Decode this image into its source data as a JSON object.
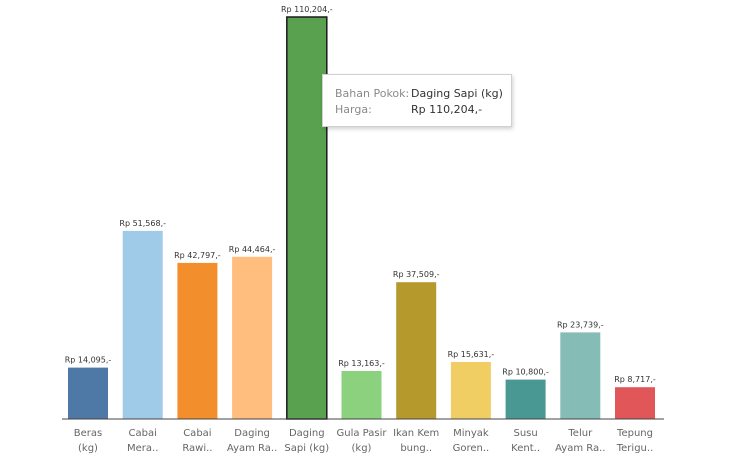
{
  "chart_data": {
    "type": "bar",
    "categories": [
      [
        "Beras",
        "(kg)"
      ],
      [
        "Cabai",
        "Mera.."
      ],
      [
        "Cabai",
        "Rawi.."
      ],
      [
        "Daging",
        "Ayam Ra.."
      ],
      [
        "Daging",
        "Sapi (kg)"
      ],
      [
        "Gula Pasir",
        "(kg)"
      ],
      [
        "Ikan Kem",
        "bung.."
      ],
      [
        "Minyak",
        "Goren.."
      ],
      [
        "Susu",
        "Kent.."
      ],
      [
        "Telur",
        "Ayam Ra.."
      ],
      [
        "Tepung",
        "Terigu.."
      ]
    ],
    "values": [
      14095,
      51568,
      42797,
      44464,
      110204,
      13163,
      37509,
      15631,
      10800,
      23739,
      8717
    ],
    "value_labels": [
      "Rp 14,095,-",
      "Rp 51,568,-",
      "Rp 42,797,-",
      "Rp 44,464,-",
      "Rp 110,204,-",
      "Rp 13,163,-",
      "Rp 37,509,-",
      "Rp 15,631,-",
      "Rp 10,800,-",
      "Rp 23,739,-",
      "Rp 8,717,-"
    ],
    "colors": [
      "#4e79a7",
      "#a0cbe8",
      "#f28e2b",
      "#ffbe7d",
      "#59a14f",
      "#8cd17d",
      "#b6992d",
      "#f1ce63",
      "#499894",
      "#86bcb6",
      "#e15759"
    ],
    "highlighted_index": 4,
    "ylim": [
      0,
      110204
    ],
    "grid": false,
    "title": "",
    "xlabel": "",
    "ylabel": ""
  },
  "tooltip": {
    "row1_key": "Bahan Pokok:",
    "row1_value": "Daging Sapi (kg)",
    "row2_key": "Harga:",
    "row2_value": "Rp 110,204,-"
  }
}
